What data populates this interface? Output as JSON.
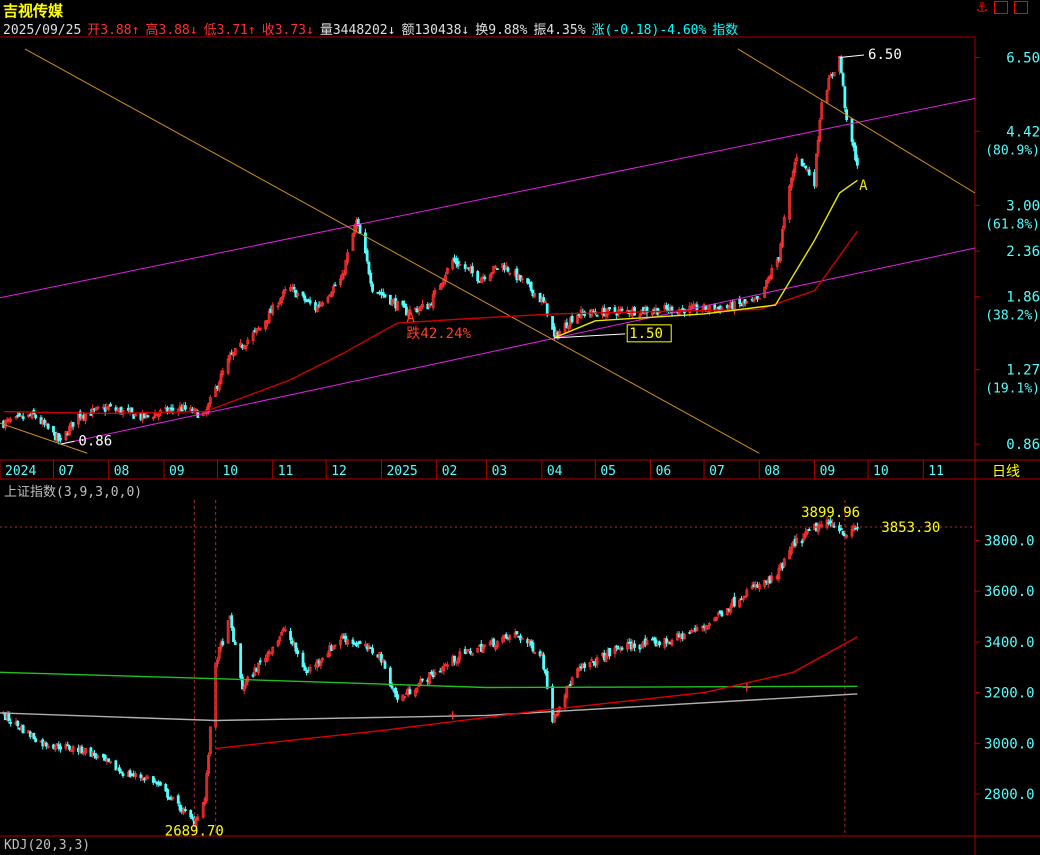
{
  "header": {
    "stock_name": "吉视传媒",
    "quote": [
      {
        "key": "date",
        "text": "2025/09/25",
        "cls": "wh"
      },
      {
        "key": "open",
        "text": "开3.88↑",
        "cls": "up"
      },
      {
        "key": "high",
        "text": "高3.88↓",
        "cls": "up"
      },
      {
        "key": "low",
        "text": "低3.71↑",
        "cls": "up"
      },
      {
        "key": "close",
        "text": "收3.73↓",
        "cls": "up"
      },
      {
        "key": "volume",
        "text": "量3448202↓",
        "cls": "wh"
      },
      {
        "key": "amount",
        "text": "额130438↓",
        "cls": "wh"
      },
      {
        "key": "turnover",
        "text": "换9.88%",
        "cls": "wh"
      },
      {
        "key": "amplitude",
        "text": "振4.35%",
        "cls": "wh"
      },
      {
        "key": "change",
        "text": "涨(-0.18)-4.60%",
        "cls": "cy"
      },
      {
        "key": "index",
        "text": "指数",
        "cls": "cy"
      }
    ]
  },
  "panel2_title": "上证指数(3,9,3,0,0)",
  "panel3_title": "KDJ(20,3,3)",
  "period": "日线",
  "colors": {
    "up": "#ff3030",
    "down": "#54ffff",
    "grid": "#b00000",
    "axis_text": "#54ffff",
    "ma_red": "#cc0000",
    "ma_yellow": "#e8e800",
    "channel": "#e020e0",
    "fib": "#d09020"
  },
  "chart_data": [
    {
      "type": "candlestick",
      "name": "吉视传媒 日线",
      "scale": "log",
      "ylim": [
        0.8,
        7.2
      ],
      "x_range": [
        "2024-06-01",
        "2025-11-30"
      ],
      "x_ticks": [
        {
          "date": "2024-06-01",
          "label": "2024"
        },
        {
          "date": "2024-07-01",
          "label": "07"
        },
        {
          "date": "2024-08-01",
          "label": "08"
        },
        {
          "date": "2024-09-01",
          "label": "09"
        },
        {
          "date": "2024-10-01",
          "label": "10"
        },
        {
          "date": "2024-11-01",
          "label": "11"
        },
        {
          "date": "2024-12-01",
          "label": "12"
        },
        {
          "date": "2025-01-01",
          "label": "2025"
        },
        {
          "date": "2025-02-01",
          "label": "02"
        },
        {
          "date": "2025-03-01",
          "label": "03"
        },
        {
          "date": "2025-04-01",
          "label": "04"
        },
        {
          "date": "2025-05-01",
          "label": "05"
        },
        {
          "date": "2025-06-01",
          "label": "06"
        },
        {
          "date": "2025-07-01",
          "label": "07"
        },
        {
          "date": "2025-08-01",
          "label": "08"
        },
        {
          "date": "2025-09-01",
          "label": "09"
        },
        {
          "date": "2025-10-01",
          "label": "10"
        },
        {
          "date": "2025-11-01",
          "label": "11"
        }
      ],
      "y_ticks": [
        {
          "value": 6.5,
          "label": "6.50"
        },
        {
          "value": 4.42,
          "label": "4.42",
          "sub": "(80.9%)"
        },
        {
          "value": 3.0,
          "label": "3.00",
          "sub": "(61.8%)"
        },
        {
          "value": 2.36,
          "label": "2.36"
        },
        {
          "value": 1.86,
          "label": "1.86",
          "sub": "(38.2%)"
        },
        {
          "value": 1.27,
          "label": "1.27",
          "sub": "(19.1%)"
        },
        {
          "value": 0.86,
          "label": "0.86"
        }
      ],
      "close_path": [
        [
          "2024-06-03",
          0.96
        ],
        [
          "2024-06-20",
          1.0
        ],
        [
          "2024-07-05",
          0.87
        ],
        [
          "2024-07-15",
          1.0
        ],
        [
          "2024-08-01",
          1.04
        ],
        [
          "2024-08-20",
          0.99
        ],
        [
          "2024-09-10",
          1.04
        ],
        [
          "2024-09-24",
          1.0
        ],
        [
          "2024-10-08",
          1.35
        ],
        [
          "2024-10-25",
          1.58
        ],
        [
          "2024-11-10",
          1.95
        ],
        [
          "2024-11-25",
          1.75
        ],
        [
          "2024-12-10",
          2.05
        ],
        [
          "2024-12-18",
          2.75
        ],
        [
          "2024-12-27",
          1.95
        ],
        [
          "2025-01-15",
          1.72
        ],
        [
          "2025-01-28",
          1.78
        ],
        [
          "2025-02-10",
          2.25
        ],
        [
          "2025-02-25",
          2.05
        ],
        [
          "2025-03-10",
          2.2
        ],
        [
          "2025-03-25",
          1.95
        ],
        [
          "2025-04-03",
          1.78
        ],
        [
          "2025-04-08",
          1.5
        ],
        [
          "2025-04-20",
          1.7
        ],
        [
          "2025-05-10",
          1.72
        ],
        [
          "2025-06-10",
          1.74
        ],
        [
          "2025-07-10",
          1.75
        ],
        [
          "2025-08-01",
          1.82
        ],
        [
          "2025-08-12",
          2.3
        ],
        [
          "2025-08-22",
          3.9
        ],
        [
          "2025-09-01",
          3.4
        ],
        [
          "2025-09-05",
          5.2
        ],
        [
          "2025-09-15",
          6.5
        ],
        [
          "2025-09-19",
          4.6
        ],
        [
          "2025-09-25",
          3.73
        ]
      ],
      "ma_red": [
        [
          "2024-06-03",
          1.02
        ],
        [
          "2024-08-01",
          1.01
        ],
        [
          "2024-09-24",
          1.02
        ],
        [
          "2024-11-10",
          1.2
        ],
        [
          "2024-12-10",
          1.38
        ],
        [
          "2025-01-10",
          1.62
        ],
        [
          "2025-02-20",
          1.66
        ],
        [
          "2025-04-08",
          1.7
        ],
        [
          "2025-06-01",
          1.72
        ],
        [
          "2025-08-01",
          1.74
        ],
        [
          "2025-09-01",
          1.92
        ],
        [
          "2025-09-25",
          2.62
        ]
      ],
      "ma_yellow": [
        [
          "2025-04-08",
          1.5
        ],
        [
          "2025-05-01",
          1.64
        ],
        [
          "2025-07-01",
          1.7
        ],
        [
          "2025-08-10",
          1.78
        ],
        [
          "2025-09-01",
          2.5
        ],
        [
          "2025-09-15",
          3.2
        ],
        [
          "2025-09-25",
          3.42
        ]
      ],
      "channel_upper": [
        [
          "2024-06-01",
          1.85
        ],
        [
          "2025-11-30",
          5.25
        ]
      ],
      "channel_lower": [
        [
          "2024-07-05",
          0.86
        ],
        [
          "2025-11-30",
          2.4
        ]
      ],
      "fib_lines": [
        [
          [
            "2024-06-15",
            6.8
          ],
          [
            "2025-08-01",
            0.82
          ]
        ],
        [
          [
            "2024-06-01",
            0.96
          ],
          [
            "2024-07-20",
            0.82
          ]
        ],
        [
          [
            "2025-07-20",
            6.8
          ],
          [
            "2025-11-30",
            3.2
          ]
        ]
      ],
      "annotations": [
        {
          "date": "2024-07-05",
          "value": 0.86,
          "label_date": "2024-07-15",
          "label_value": 0.855,
          "text": "0.86",
          "color": "#ffffff"
        },
        {
          "date": "2025-09-15",
          "value": 6.5,
          "label_date": "2025-10-01",
          "label_value": 6.45,
          "text": "6.50",
          "color": "#ffffff"
        },
        {
          "date": "2025-04-08",
          "value": 1.5,
          "label_date": "2025-05-20",
          "label_value": 1.5,
          "text": "1.50",
          "color": "#ffff00",
          "boxed": true
        },
        {
          "date": "2025-01-15",
          "value": 1.6,
          "label_date": "2025-01-15",
          "label_value": 1.63,
          "text": "A'",
          "color": "#ff4020"
        },
        {
          "date": "2025-01-15",
          "value": 1.5,
          "label_date": "2025-01-15",
          "label_value": 1.5,
          "text": "跌42.24%",
          "color": "#ff4020"
        },
        {
          "date": "2025-09-26",
          "value": 3.25,
          "label_date": "2025-09-26",
          "label_value": 3.25,
          "text": "A",
          "color": "#e8e800"
        }
      ]
    },
    {
      "type": "candlestick",
      "name": "上证指数",
      "ylim": [
        2650,
        3960
      ],
      "y_ticks": [
        3800,
        3600,
        3400,
        3200,
        3000,
        2800
      ],
      "y_tick_labels": [
        "3800.0",
        "3600.0",
        "3400.0",
        "3200.0",
        "3000.0",
        "2800.0"
      ],
      "close_path": [
        [
          "2024-06-03",
          3110
        ],
        [
          "2024-06-25",
          3000
        ],
        [
          "2024-07-20",
          2970
        ],
        [
          "2024-08-10",
          2880
        ],
        [
          "2024-08-25",
          2860
        ],
        [
          "2024-09-18",
          2690
        ],
        [
          "2024-09-24",
          2780
        ],
        [
          "2024-09-30",
          3320
        ],
        [
          "2024-10-08",
          3490
        ],
        [
          "2024-10-15",
          3220
        ],
        [
          "2024-11-08",
          3450
        ],
        [
          "2024-11-20",
          3280
        ],
        [
          "2024-12-10",
          3420
        ],
        [
          "2024-12-31",
          3350
        ],
        [
          "2025-01-10",
          3170
        ],
        [
          "2025-01-25",
          3250
        ],
        [
          "2025-02-15",
          3350
        ],
        [
          "2025-03-18",
          3430
        ],
        [
          "2025-04-01",
          3350
        ],
        [
          "2025-04-07",
          3100
        ],
        [
          "2025-04-20",
          3280
        ],
        [
          "2025-05-15",
          3380
        ],
        [
          "2025-06-10",
          3400
        ],
        [
          "2025-07-01",
          3460
        ],
        [
          "2025-07-25",
          3600
        ],
        [
          "2025-08-10",
          3650
        ],
        [
          "2025-08-20",
          3780
        ],
        [
          "2025-09-01",
          3850
        ],
        [
          "2025-09-12",
          3870
        ],
        [
          "2025-09-20",
          3820
        ],
        [
          "2025-09-25",
          3853.3
        ]
      ],
      "ma_green": [
        [
          "2024-06-01",
          3280
        ],
        [
          "2024-10-01",
          3255
        ],
        [
          "2025-03-01",
          3220
        ],
        [
          "2025-09-25",
          3225
        ]
      ],
      "ma_white": [
        [
          "2024-06-01",
          3120
        ],
        [
          "2024-09-30",
          3090
        ],
        [
          "2025-03-01",
          3110
        ],
        [
          "2025-09-25",
          3195
        ]
      ],
      "ma_red": [
        [
          "2024-09-30",
          2980
        ],
        [
          "2025-01-01",
          3050
        ],
        [
          "2025-04-01",
          3130
        ],
        [
          "2025-07-01",
          3200
        ],
        [
          "2025-08-20",
          3280
        ],
        [
          "2025-09-25",
          3420
        ]
      ],
      "markers": [
        {
          "date": "2025-02-10",
          "value": 3110
        },
        {
          "date": "2025-07-25",
          "value": 3220
        }
      ],
      "ref_line": 3853.3,
      "vlines": [
        "2024-09-18",
        "2024-09-30",
        "2025-09-18"
      ],
      "annotations": [
        {
          "date": "2024-09-18",
          "value": 2689.7,
          "label_date": "2024-09-18",
          "label_value": 2655,
          "text": "2689.70",
          "color": "#ffff00"
        },
        {
          "date": "2025-08-29",
          "value": 3899.96,
          "label_date": "2025-09-10",
          "label_value": 3912,
          "text": "3899.96",
          "color": "#ffff00"
        },
        {
          "date": "2025-10-25",
          "value": 3853.3,
          "label_date": "2025-10-25",
          "label_value": 3853.3,
          "text": "3853.30",
          "color": "#ffff00"
        }
      ]
    }
  ]
}
